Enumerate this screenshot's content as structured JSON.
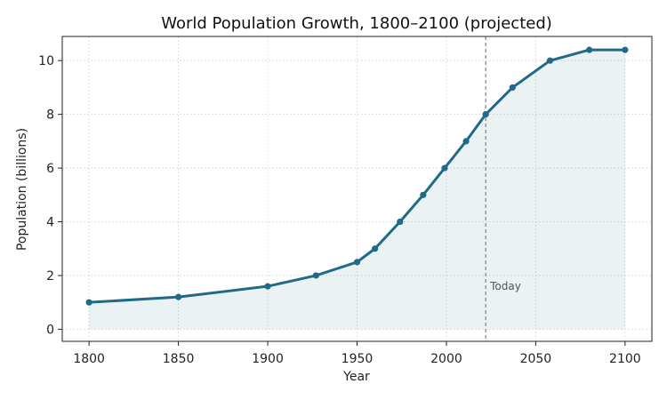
{
  "chart_data": {
    "type": "area",
    "title": "World Population Growth, 1800–2100 (projected)",
    "xlabel": "Year",
    "ylabel": "Population (billions)",
    "xlim": [
      1785,
      2115
    ],
    "ylim": [
      -0.45,
      10.9
    ],
    "xticks": [
      1800,
      1850,
      1900,
      1950,
      2000,
      2050,
      2100
    ],
    "yticks": [
      0,
      2,
      4,
      6,
      8,
      10
    ],
    "grid": true,
    "series": [
      {
        "x": [
          1800,
          1850,
          1900,
          1927,
          1950,
          1960,
          1974,
          1987,
          1999,
          2011,
          2022,
          2037,
          2058,
          2080,
          2100
        ],
        "values": [
          1.0,
          1.2,
          1.6,
          2.0,
          2.5,
          3.0,
          4.0,
          5.0,
          6.0,
          7.0,
          8.0,
          9.0,
          10.0,
          10.4,
          10.4
        ]
      }
    ],
    "annotations": [
      {
        "type": "vline",
        "x": 2022,
        "label": "Today",
        "label_y": 1.6
      }
    ],
    "colors": {
      "line": "#1f6b87",
      "fill": "#1f6b87",
      "grid": "#d9d9d9",
      "vline": "#808080"
    }
  }
}
